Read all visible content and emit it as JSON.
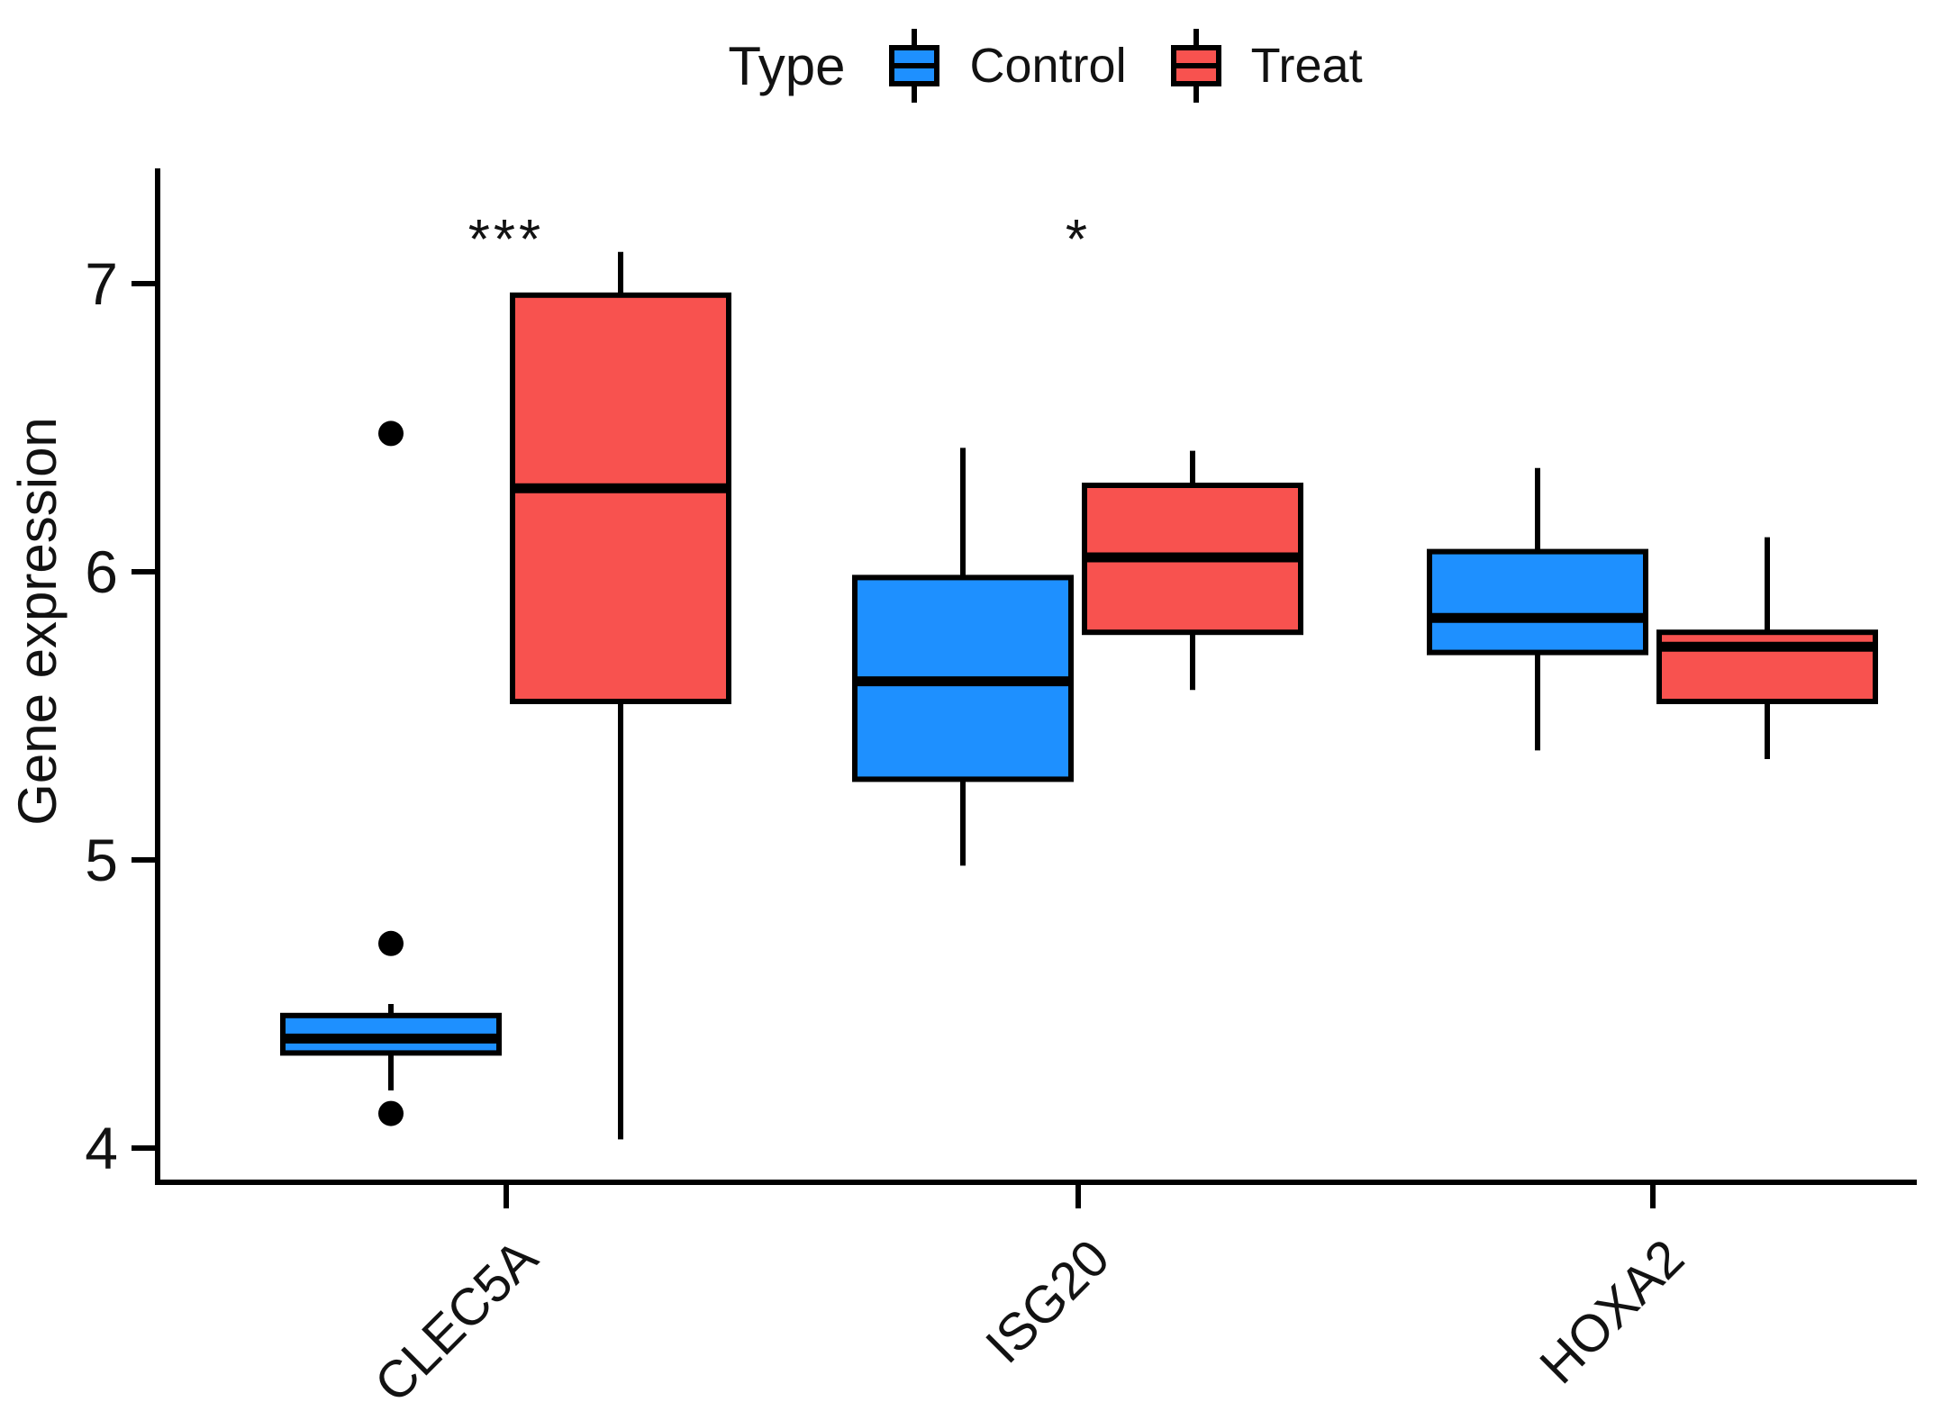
{
  "chart_data": {
    "type": "boxplot",
    "title": "",
    "ylabel": "Gene expression",
    "xlabel": "",
    "yticks": [
      4,
      5,
      6,
      7
    ],
    "ylim": [
      3.88,
      7.39
    ],
    "grid": "off",
    "legend": {
      "title": "Type",
      "position": "top-center",
      "entries": [
        {
          "label": "Control",
          "color": "#1E90FF"
        },
        {
          "label": "Treat",
          "color": "#F8524F"
        }
      ]
    },
    "categories": [
      "CLEC5A",
      "ISG20",
      "HOXA2"
    ],
    "annotations": [
      {
        "category": "CLEC5A",
        "label": "***"
      },
      {
        "category": "ISG20",
        "label": "*"
      }
    ],
    "series": [
      {
        "name": "Control",
        "color": "#1E90FF",
        "boxes": [
          {
            "category": "CLEC5A",
            "whisker_low": 4.2,
            "q1": 4.33,
            "median": 4.38,
            "q3": 4.46,
            "whisker_high": 4.5,
            "outliers": [
              6.48,
              4.71,
              4.12
            ]
          },
          {
            "category": "ISG20",
            "whisker_low": 4.98,
            "q1": 5.28,
            "median": 5.62,
            "q3": 5.98,
            "whisker_high": 6.43,
            "outliers": []
          },
          {
            "category": "HOXA2",
            "whisker_low": 5.38,
            "q1": 5.72,
            "median": 5.84,
            "q3": 6.07,
            "whisker_high": 6.36,
            "outliers": []
          }
        ]
      },
      {
        "name": "Treat",
        "color": "#F8524F",
        "boxes": [
          {
            "category": "CLEC5A",
            "whisker_low": 4.03,
            "q1": 5.55,
            "median": 6.29,
            "q3": 6.96,
            "whisker_high": 7.11,
            "outliers": []
          },
          {
            "category": "ISG20",
            "whisker_low": 5.59,
            "q1": 5.79,
            "median": 6.05,
            "q3": 6.3,
            "whisker_high": 6.42,
            "outliers": []
          },
          {
            "category": "HOXA2",
            "whisker_low": 5.35,
            "q1": 5.55,
            "median": 5.74,
            "q3": 5.79,
            "whisker_high": 6.12,
            "outliers": []
          }
        ]
      }
    ]
  }
}
